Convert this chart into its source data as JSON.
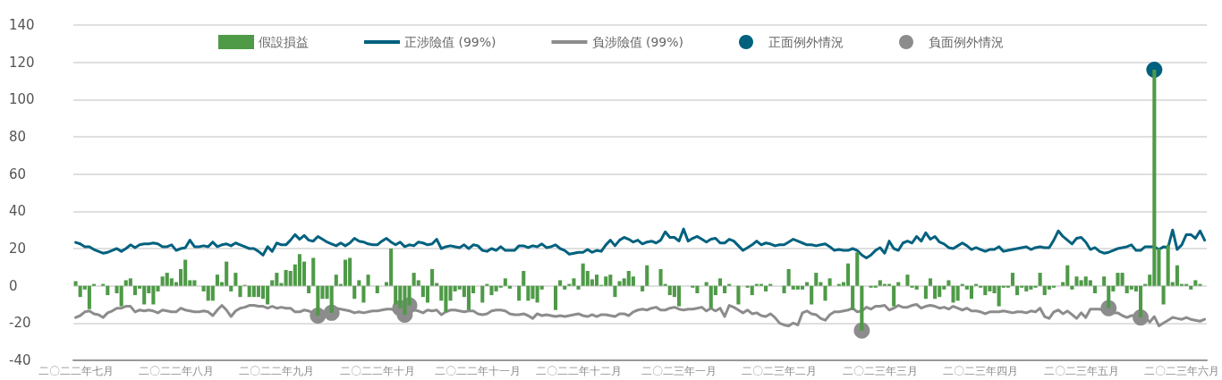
{
  "chart_data": {
    "type": "bar",
    "categories": [
      "二〇二二年七月",
      null,
      null,
      null,
      null,
      null,
      null,
      null,
      null,
      null,
      null,
      null,
      null,
      null,
      null,
      null,
      null,
      null,
      null,
      null,
      null,
      null,
      "二〇二二年八月",
      null,
      null,
      null,
      null,
      null,
      null,
      null,
      null,
      null,
      null,
      null,
      null,
      null,
      null,
      null,
      null,
      null,
      null,
      null,
      null,
      null,
      "二〇二二年九月",
      null,
      null,
      null,
      null,
      null,
      null,
      null,
      null,
      null,
      null,
      null,
      null,
      null,
      null,
      null,
      null,
      null,
      null,
      null,
      null,
      null,
      "二〇二二年十月",
      null,
      null,
      null,
      null,
      null,
      null,
      null,
      null,
      null,
      null,
      null,
      null,
      null,
      null,
      null,
      null,
      null,
      null,
      null,
      null,
      null,
      "二〇二二年十一月",
      null,
      null,
      null,
      null,
      null,
      null,
      null,
      null,
      null,
      null,
      null,
      null,
      null,
      null,
      null,
      null,
      null,
      null,
      null,
      null,
      null,
      "二〇二二年十二月",
      null,
      null,
      null,
      null,
      null,
      null,
      null,
      null,
      null,
      null,
      null,
      null,
      null,
      null,
      null,
      null,
      null,
      null,
      null,
      null,
      null,
      "二〇二三年一月",
      null,
      null,
      null,
      null,
      null,
      null,
      null,
      null,
      null,
      null,
      null,
      null,
      null,
      null,
      null,
      null,
      null,
      null,
      null,
      null,
      null,
      "二〇二三年二月",
      null,
      null,
      null,
      null,
      null,
      null,
      null,
      null,
      null,
      null,
      null,
      null,
      null,
      null,
      null,
      null,
      null,
      null,
      null,
      null,
      null,
      "二〇二三年三月",
      null,
      null,
      null,
      null,
      null,
      null,
      null,
      null,
      null,
      null,
      null,
      null,
      null,
      null,
      null,
      null,
      null,
      null,
      null,
      null,
      null,
      "二〇二三年四月",
      null,
      null,
      null,
      null,
      null,
      null,
      null,
      null,
      null,
      null,
      null,
      null,
      null,
      null,
      null,
      null,
      null,
      null,
      null,
      null,
      null,
      "二〇二三年五月",
      null,
      null,
      null,
      null,
      null,
      null,
      null,
      null,
      null,
      null,
      null,
      null,
      null,
      null,
      null,
      null,
      null,
      null,
      null,
      null,
      null,
      "二〇二三年六月",
      null,
      null,
      null,
      null,
      null
    ],
    "series": [
      {
        "name": "假設損益",
        "color": "#4e9a47",
        "values": [
          2.5,
          -6,
          -2,
          -12.5,
          1,
          0,
          1,
          -5,
          0,
          -4,
          -11,
          3,
          4,
          -5,
          -1.5,
          -10,
          -4,
          -10,
          -3,
          5,
          7,
          4,
          2,
          9,
          14,
          3,
          3,
          0,
          -3,
          -8,
          -8,
          6,
          2,
          13,
          -3,
          7,
          -6,
          0.5,
          -6,
          -6,
          -6,
          -7,
          -10,
          3,
          7,
          1.5,
          8.5,
          8,
          11.5,
          17,
          13,
          -4,
          15,
          -16,
          -7,
          -7,
          -14.5,
          6,
          1,
          14,
          15,
          -7,
          3,
          -9,
          6,
          0,
          -4,
          0,
          2,
          20,
          -10,
          -12,
          -15.5,
          -10.5,
          7,
          3,
          -6,
          -9,
          9,
          1.5,
          -8,
          -14,
          -8,
          -3,
          -2,
          -6,
          -13,
          -4,
          0,
          -9,
          1,
          -5,
          -3,
          -1,
          4,
          -1.5,
          0,
          -8,
          8,
          -8,
          -7,
          -9,
          -2,
          0,
          0,
          -13,
          3,
          -2,
          1,
          4,
          -2,
          12,
          8,
          3.5,
          6,
          0.5,
          5,
          6,
          -6,
          2.5,
          4,
          8,
          5,
          0,
          -3,
          11,
          0,
          0,
          9,
          1,
          -5,
          -6,
          -11,
          0,
          0,
          -1,
          -4,
          0,
          2,
          -12,
          -5,
          4,
          -4,
          1,
          0,
          -10,
          0,
          -1,
          -5,
          1,
          1,
          -3,
          1,
          0,
          0,
          -4,
          9,
          -2,
          -2,
          -2,
          2,
          -10,
          7,
          2,
          -8,
          4,
          0,
          1,
          2,
          12,
          -13,
          18,
          -24,
          0,
          -1,
          -1,
          3,
          1,
          1,
          -11,
          2,
          0,
          6,
          -1,
          -2,
          0,
          -7,
          4,
          -7,
          -6,
          -2,
          3,
          -9,
          -8,
          1,
          -2,
          -7,
          1,
          -1,
          -5,
          -3,
          -4,
          -11,
          -1,
          -1,
          7,
          -5,
          -1,
          -3,
          -2,
          -1,
          7,
          -5,
          -2,
          -1,
          0,
          2,
          11,
          -2,
          5,
          3,
          5,
          3,
          -4,
          0,
          5,
          -12,
          -3,
          7,
          7,
          -4,
          -2,
          -3,
          -17,
          1,
          6,
          116,
          20,
          -10,
          22,
          2,
          11,
          1,
          1,
          -2,
          3,
          1,
          0
        ]
      },
      {
        "type": "line",
        "name": "正涉險值 (99%)",
        "color": "#00617f",
        "marker": "none",
        "values": [
          23.3,
          22.5,
          21,
          21,
          19.5,
          18.5,
          17.5,
          18,
          19,
          20,
          18.5,
          20,
          22,
          20.5,
          22,
          22.5,
          22.5,
          23,
          22.5,
          21,
          21,
          22,
          19,
          20,
          20.5,
          24.5,
          21,
          21,
          21.5,
          21,
          23.5,
          21,
          22,
          22.5,
          21.5,
          23,
          22,
          21,
          20,
          20,
          18.5,
          16.5,
          21,
          18.5,
          23,
          22,
          22,
          24.5,
          27.5,
          25,
          27,
          24.5,
          24,
          26.5,
          25,
          23.5,
          22.5,
          21.5,
          23,
          21.5,
          23,
          25.5,
          24,
          23.5,
          22.5,
          22,
          22,
          24,
          25.5,
          23.5,
          22,
          23.5,
          21,
          22,
          21.5,
          23.5,
          23,
          22,
          22.5,
          25,
          20,
          21,
          21.5,
          21,
          20.5,
          22,
          20,
          22,
          21.5,
          19,
          18.5,
          20,
          19,
          21,
          19,
          19,
          19,
          21.5,
          21.5,
          20.5,
          21.5,
          21,
          22.5,
          20.5,
          21,
          22,
          20,
          19,
          17,
          17.5,
          18,
          18,
          19.5,
          18,
          19,
          18.5,
          22,
          24.5,
          21.5,
          24.5,
          26,
          25,
          23.5,
          24.5,
          22.5,
          23.5,
          24,
          23,
          24.5,
          29,
          26,
          26,
          24,
          30.5,
          24,
          25.5,
          26.5,
          25,
          23.5,
          25,
          25.5,
          23,
          23,
          25,
          24,
          21.5,
          19,
          20.5,
          22,
          24,
          22,
          23,
          22.5,
          21.5,
          22,
          22,
          23.5,
          25,
          24,
          23,
          22,
          22,
          21.5,
          22,
          22.5,
          21,
          19,
          19.5,
          19,
          19,
          20,
          19,
          16.5,
          15,
          16.5,
          19,
          20.5,
          17.5,
          24,
          20,
          19,
          23,
          24,
          23,
          26.5,
          24,
          28.5,
          25,
          26.5,
          23.5,
          22.5,
          20.5,
          20,
          21.5,
          23,
          21.5,
          19.5,
          20.5,
          19.5,
          18.5,
          19.5,
          19.5,
          21,
          18.5,
          19,
          19.5,
          20,
          20.5,
          21,
          19.5,
          20.5,
          21,
          20.5,
          20.5,
          24.5,
          29.5,
          26.5,
          24.5,
          22.5,
          25.5,
          26,
          23.5,
          19.5,
          20.5,
          18.5,
          17.5,
          18,
          19,
          20,
          20.5,
          21,
          22,
          19,
          19,
          21,
          21,
          21,
          19.5,
          21,
          20.5,
          30,
          19.5,
          22,
          27.5,
          27.5,
          25.5,
          29.5,
          24.5
        ]
      },
      {
        "type": "line",
        "name": "負涉險值 (99%)",
        "color": "#8c8c8c",
        "marker": "none",
        "values": [
          -17,
          -16,
          -14,
          -13.5,
          -15,
          -15.5,
          -17,
          -14.5,
          -13.5,
          -12,
          -12,
          -11,
          -11,
          -14,
          -13,
          -13.5,
          -13,
          -13.5,
          -14.5,
          -13,
          -13.5,
          -14,
          -14,
          -12,
          -13,
          -13.5,
          -14,
          -14,
          -13.5,
          -14,
          -16,
          -13,
          -10.5,
          -13,
          -16.5,
          -13.5,
          -12,
          -11.5,
          -10.5,
          -10.5,
          -11,
          -11,
          -12,
          -11,
          -12,
          -11.5,
          -12,
          -12,
          -14,
          -14,
          -13,
          -13.5,
          -14.5,
          -16,
          -15.5,
          -13.5,
          -10.5,
          -12,
          -12.5,
          -13,
          -13.5,
          -14.5,
          -14,
          -14.5,
          -14,
          -13.5,
          -13.5,
          -13,
          -12.5,
          -12.5,
          -13.5,
          -13,
          -12.5,
          -13,
          -13,
          -13.5,
          -14.5,
          -13,
          -13.5,
          -13,
          -15.5,
          -14,
          -13,
          -13,
          -13.5,
          -14,
          -13.5,
          -13.5,
          -15,
          -15.5,
          -15,
          -13.5,
          -13,
          -13,
          -13.5,
          -15,
          -15.5,
          -15.5,
          -15,
          -16,
          -17.5,
          -15,
          -16,
          -15.5,
          -16,
          -16.5,
          -16,
          -16.5,
          -16,
          -15.5,
          -15,
          -16,
          -16.5,
          -15.5,
          -16.5,
          -15.5,
          -15.5,
          -16,
          -16.5,
          -15,
          -15,
          -16,
          -14,
          -13,
          -12.5,
          -13,
          -12,
          -11.5,
          -13,
          -13,
          -12,
          -11.5,
          -12.5,
          -13,
          -12.5,
          -12.5,
          -12,
          -11.5,
          -13.5,
          -12,
          -13.5,
          -12,
          -16.5,
          -10.5,
          -11.5,
          -13,
          -14.5,
          -13,
          -15,
          -14.5,
          -16,
          -16.5,
          -15,
          -17,
          -20,
          -21,
          -21.5,
          -20,
          -21,
          -14.5,
          -13.5,
          -15,
          -15.5,
          -17.5,
          -18.5,
          -15.5,
          -14,
          -14,
          -13.5,
          -13,
          -12,
          -14,
          -13.5,
          -11.5,
          -12.5,
          -11,
          -11,
          -10.5,
          -13,
          -12,
          -10.5,
          -11.5,
          -11.5,
          -10.5,
          -10,
          -12,
          -11,
          -10.5,
          -11,
          -12,
          -11.5,
          -12.5,
          -11,
          -12,
          -13,
          -12,
          -13.5,
          -13.5,
          -14,
          -15,
          -14,
          -14,
          -14,
          -13.5,
          -14,
          -14.5,
          -14,
          -14,
          -14.5,
          -13.5,
          -14,
          -12,
          -16.5,
          -17.5,
          -14,
          -13,
          -15,
          -13.5,
          -15.5,
          -17.5,
          -14.5,
          -17,
          -12.5,
          -12.5,
          -12.5,
          -13.5,
          -14,
          -14.5,
          -14.5,
          -16,
          -17,
          -16,
          -16,
          -17,
          -17,
          -19.5,
          -16.5,
          -21.5,
          -20,
          -18.5,
          -17,
          -17.5,
          -18,
          -17,
          -18,
          -18.5,
          -19,
          -18
        ]
      },
      {
        "type": "scatter",
        "name": "正面例外情況",
        "color": "#00617f",
        "marker": "circle",
        "values": [
          null,
          null,
          null,
          null,
          null,
          null,
          null,
          null,
          null,
          null,
          null,
          null,
          null,
          null,
          null,
          null,
          null,
          null,
          null,
          null,
          null,
          null,
          null,
          null,
          null,
          null,
          null,
          null,
          null,
          null,
          null,
          null,
          null,
          null,
          null,
          null,
          null,
          null,
          null,
          null,
          null,
          null,
          null,
          null,
          null,
          null,
          null,
          null,
          null,
          null,
          null,
          null,
          null,
          null,
          null,
          null,
          null,
          null,
          null,
          null,
          null,
          null,
          null,
          null,
          null,
          null,
          null,
          null,
          null,
          null,
          null,
          null,
          null,
          null,
          null,
          null,
          null,
          null,
          null,
          null,
          null,
          null,
          null,
          null,
          null,
          null,
          null,
          null,
          null,
          null,
          null,
          null,
          null,
          null,
          null,
          null,
          null,
          null,
          null,
          null,
          null,
          null,
          null,
          null,
          null,
          null,
          null,
          null,
          null,
          null,
          null,
          null,
          null,
          null,
          null,
          null,
          null,
          null,
          null,
          null,
          null,
          null,
          null,
          null,
          null,
          null,
          null,
          null,
          null,
          null,
          null,
          null,
          null,
          null,
          null,
          null,
          null,
          null,
          null,
          null,
          null,
          null,
          null,
          null,
          null,
          null,
          null,
          null,
          null,
          null,
          null,
          null,
          null,
          null,
          null,
          null,
          null,
          null,
          null,
          null,
          null,
          null,
          null,
          null,
          null,
          null,
          null,
          null,
          null,
          null,
          null,
          null,
          null,
          null,
          null,
          null,
          null,
          null,
          null,
          null,
          null,
          null,
          null,
          null,
          null,
          null,
          null,
          null,
          null,
          null,
          null,
          null,
          null,
          null,
          null,
          null,
          null,
          null,
          null,
          null,
          null,
          null,
          null,
          null,
          null,
          null,
          null,
          null,
          null,
          null,
          null,
          null,
          null,
          null,
          null,
          null,
          null,
          null,
          null,
          null,
          null,
          null,
          null,
          null,
          null,
          null,
          null,
          null,
          null,
          null,
          null,
          null,
          null,
          null,
          null,
          null,
          116,
          null,
          null,
          null,
          null,
          null,
          null,
          null,
          null,
          null,
          null,
          null
        ]
      },
      {
        "type": "scatter",
        "name": "負面例外情況",
        "color": "#8c8c8c",
        "marker": "circle",
        "values": [
          null,
          null,
          null,
          null,
          null,
          null,
          null,
          null,
          null,
          null,
          null,
          null,
          null,
          null,
          null,
          null,
          null,
          null,
          null,
          null,
          null,
          null,
          null,
          null,
          null,
          null,
          null,
          null,
          null,
          null,
          null,
          null,
          null,
          null,
          null,
          null,
          null,
          null,
          null,
          null,
          null,
          null,
          null,
          null,
          null,
          null,
          null,
          null,
          null,
          null,
          null,
          null,
          null,
          -16,
          null,
          null,
          -14.5,
          null,
          null,
          null,
          null,
          null,
          null,
          null,
          null,
          null,
          null,
          null,
          null,
          null,
          null,
          -12,
          -15.5,
          -10.5,
          null,
          null,
          null,
          null,
          null,
          null,
          null,
          null,
          null,
          null,
          null,
          null,
          null,
          null,
          null,
          null,
          null,
          null,
          null,
          null,
          null,
          null,
          null,
          null,
          null,
          null,
          null,
          null,
          null,
          null,
          null,
          null,
          null,
          null,
          null,
          null,
          null,
          null,
          null,
          null,
          null,
          null,
          null,
          null,
          null,
          null,
          null,
          null,
          null,
          null,
          null,
          null,
          null,
          null,
          null,
          null,
          null,
          null,
          null,
          null,
          null,
          null,
          null,
          null,
          null,
          null,
          null,
          null,
          null,
          null,
          null,
          null,
          null,
          null,
          null,
          null,
          null,
          null,
          null,
          null,
          null,
          null,
          null,
          null,
          null,
          null,
          null,
          null,
          null,
          null,
          null,
          null,
          null,
          null,
          null,
          null,
          null,
          null,
          -24,
          null,
          null,
          null,
          null,
          null,
          null,
          null,
          null,
          null,
          null,
          null,
          null,
          null,
          null,
          null,
          null,
          null,
          null,
          null,
          null,
          null,
          null,
          null,
          null,
          null,
          null,
          null,
          null,
          null,
          null,
          null,
          null,
          null,
          null,
          null,
          null,
          null,
          null,
          null,
          null,
          null,
          null,
          null,
          null,
          null,
          null,
          null,
          null,
          null,
          null,
          null,
          null,
          null,
          -12,
          null,
          null,
          null,
          null,
          null,
          null,
          -17,
          null,
          null,
          null,
          null,
          null,
          null,
          null,
          null,
          null,
          null,
          null,
          null,
          null,
          null
        ]
      }
    ],
    "ylim": [
      -40,
      140
    ],
    "yticks": [
      -40,
      -20,
      0,
      20,
      40,
      60,
      80,
      100,
      120,
      140
    ],
    "grid": "y",
    "legend": "top",
    "line_style": "solid"
  }
}
